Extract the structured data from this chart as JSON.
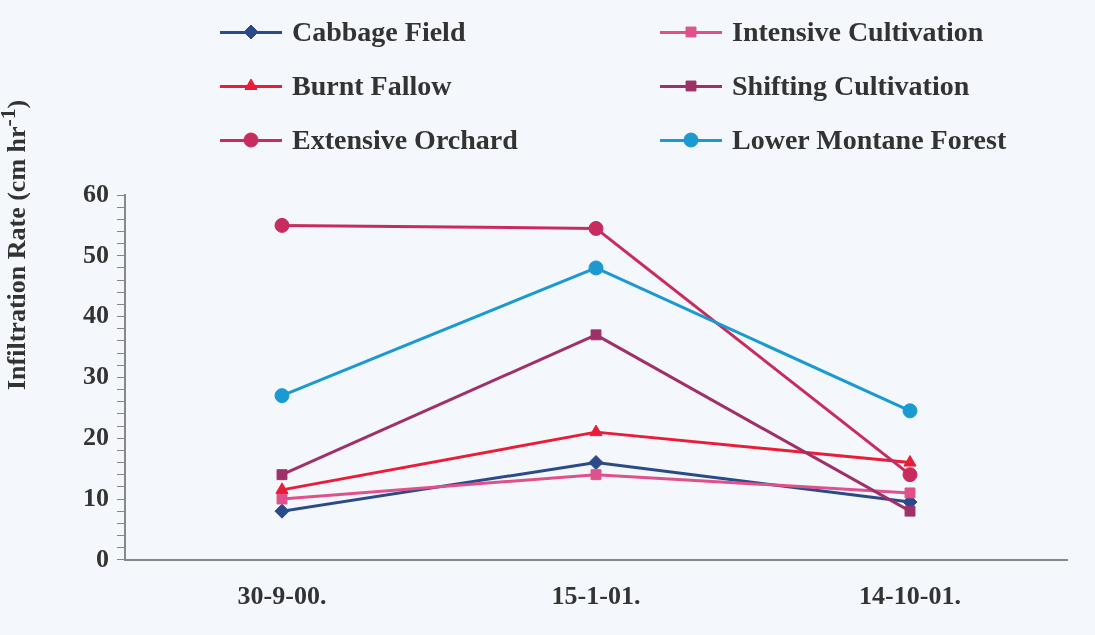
{
  "chart_data": {
    "type": "line",
    "ylabel": "Infiltration Rate (cm hr$^{-1}$)",
    "categories": [
      "30-9-00.",
      "15-1-01.",
      "14-10-01."
    ],
    "series": [
      {
        "name": "Cabbage Field",
        "color": "#2b4a8a",
        "marker": "diamond",
        "values": [
          8,
          16,
          9.5
        ]
      },
      {
        "name": "Intensive Cultivation",
        "color": "#e0508a",
        "marker": "square",
        "values": [
          10,
          14,
          11
        ]
      },
      {
        "name": "Burnt Fallow",
        "color": "#ea1c38",
        "marker": "triangle",
        "values": [
          11.5,
          21,
          16
        ]
      },
      {
        "name": "Shifting Cultivation",
        "color": "#a0306a",
        "marker": "square",
        "values": [
          14,
          37,
          8
        ]
      },
      {
        "name": "Extensive Orchard",
        "color": "#c82c5e",
        "marker": "circle",
        "values": [
          55,
          54.5,
          14
        ]
      },
      {
        "name": "Lower Montane Forest",
        "color": "#1a9ad0",
        "marker": "circle",
        "values": [
          27,
          48,
          24.5
        ]
      }
    ],
    "ylim": [
      0,
      60
    ],
    "yticks": [
      0,
      {
        "value": 2,
        "label": null
      },
      {
        "value": 4,
        "label": null
      },
      {
        "value": 6,
        "label": null
      },
      {
        "value": 8,
        "label": null
      },
      10,
      {
        "value": 12,
        "label": null
      },
      {
        "value": 14,
        "label": null
      },
      {
        "value": 16,
        "label": null
      },
      {
        "value": 18,
        "label": null
      },
      20,
      {
        "value": 22,
        "label": null
      },
      {
        "value": 24,
        "label": null
      },
      {
        "value": 26,
        "label": null
      },
      {
        "value": 28,
        "label": null
      },
      30,
      {
        "value": 32,
        "label": null
      },
      {
        "value": 34,
        "label": null
      },
      {
        "value": 36,
        "label": null
      },
      {
        "value": 38,
        "label": null
      },
      40,
      {
        "value": 42,
        "label": null
      },
      {
        "value": 44,
        "label": null
      },
      {
        "value": 46,
        "label": null
      },
      {
        "value": 48,
        "label": null
      },
      50,
      {
        "value": 52,
        "label": null
      },
      {
        "value": 54,
        "label": null
      },
      {
        "value": 56,
        "label": null
      },
      {
        "value": 58,
        "label": null
      },
      60
    ],
    "grid": false,
    "legend": "top",
    "line_style": "solid"
  }
}
